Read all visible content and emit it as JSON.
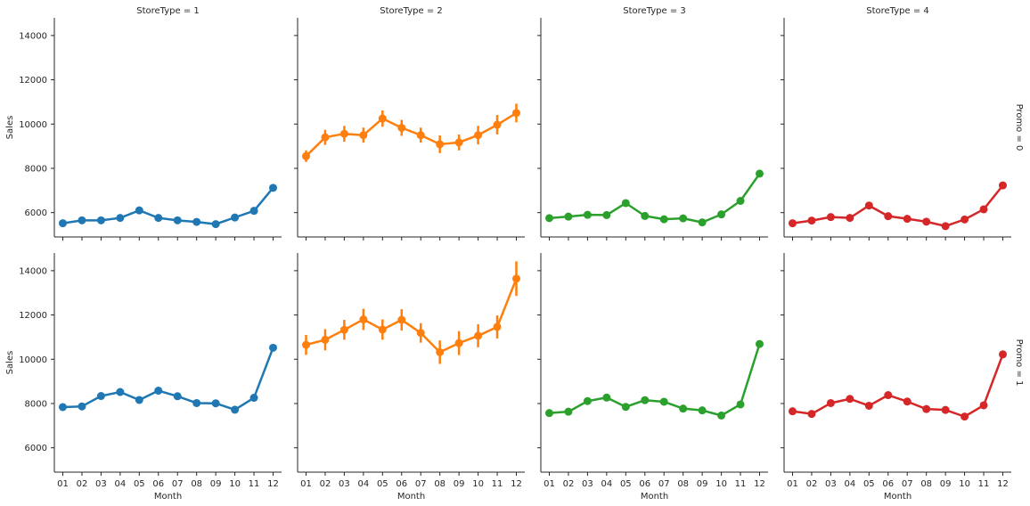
{
  "chart_data": {
    "type": "line",
    "layout": "facet-grid",
    "column_facet": "StoreType",
    "row_facet": "Promo",
    "column_titles": [
      "StoreType = 1",
      "StoreType = 2",
      "StoreType = 3",
      "StoreType = 4"
    ],
    "row_titles": [
      "Promo = 0",
      "Promo = 1"
    ],
    "xlabel": "Month",
    "ylabel": "Sales",
    "categories": [
      "01",
      "02",
      "03",
      "04",
      "05",
      "06",
      "07",
      "08",
      "09",
      "10",
      "11",
      "12"
    ],
    "ylim": [
      4900,
      14800
    ],
    "yticks": [
      6000,
      8000,
      10000,
      12000,
      14000
    ],
    "yticklabels": [
      "6000",
      "8000",
      "10000",
      "12000",
      "14000"
    ],
    "colors": [
      "#1f77b4",
      "#ff7f0e",
      "#2ca02c",
      "#d62728"
    ],
    "grid": false,
    "series": [
      [
        {
          "values": [
            5520,
            5650,
            5650,
            5760,
            6100,
            5760,
            5650,
            5580,
            5480,
            5780,
            6080,
            7120
          ],
          "errors": [
            70,
            70,
            70,
            70,
            80,
            70,
            70,
            70,
            70,
            70,
            80,
            110
          ]
        },
        {
          "values": [
            8550,
            9400,
            9560,
            9500,
            10250,
            9830,
            9500,
            9090,
            9170,
            9500,
            9970,
            10500
          ],
          "errors": [
            260,
            340,
            360,
            340,
            370,
            360,
            340,
            400,
            360,
            420,
            440,
            420
          ]
        },
        {
          "values": [
            5750,
            5820,
            5900,
            5890,
            6430,
            5850,
            5700,
            5740,
            5560,
            5920,
            6530,
            7760
          ],
          "errors": [
            70,
            70,
            70,
            70,
            80,
            70,
            70,
            70,
            70,
            70,
            80,
            110
          ]
        },
        {
          "values": [
            5520,
            5640,
            5800,
            5760,
            6320,
            5840,
            5720,
            5590,
            5390,
            5690,
            6150,
            7230
          ],
          "errors": [
            70,
            70,
            70,
            70,
            80,
            70,
            70,
            70,
            70,
            70,
            80,
            110
          ]
        }
      ],
      [
        {
          "values": [
            7840,
            7870,
            8340,
            8520,
            8160,
            8580,
            8330,
            8020,
            8010,
            7720,
            8260,
            10520
          ],
          "errors": [
            70,
            70,
            70,
            70,
            70,
            70,
            70,
            70,
            70,
            70,
            80,
            120
          ]
        },
        {
          "values": [
            10650,
            10880,
            11330,
            11800,
            11340,
            11780,
            11190,
            10320,
            10730,
            11060,
            11460,
            13640
          ],
          "errors": [
            450,
            480,
            450,
            480,
            460,
            480,
            440,
            530,
            540,
            520,
            520,
            780
          ]
        },
        {
          "values": [
            7570,
            7630,
            8110,
            8270,
            7850,
            8150,
            8080,
            7770,
            7690,
            7460,
            7960,
            10690
          ],
          "errors": [
            70,
            70,
            70,
            70,
            70,
            70,
            70,
            70,
            70,
            70,
            80,
            120
          ]
        },
        {
          "values": [
            7650,
            7530,
            8020,
            8210,
            7900,
            8380,
            8090,
            7750,
            7710,
            7410,
            7920,
            10220
          ],
          "errors": [
            70,
            70,
            70,
            70,
            70,
            70,
            70,
            70,
            70,
            70,
            80,
            120
          ]
        }
      ]
    ]
  }
}
